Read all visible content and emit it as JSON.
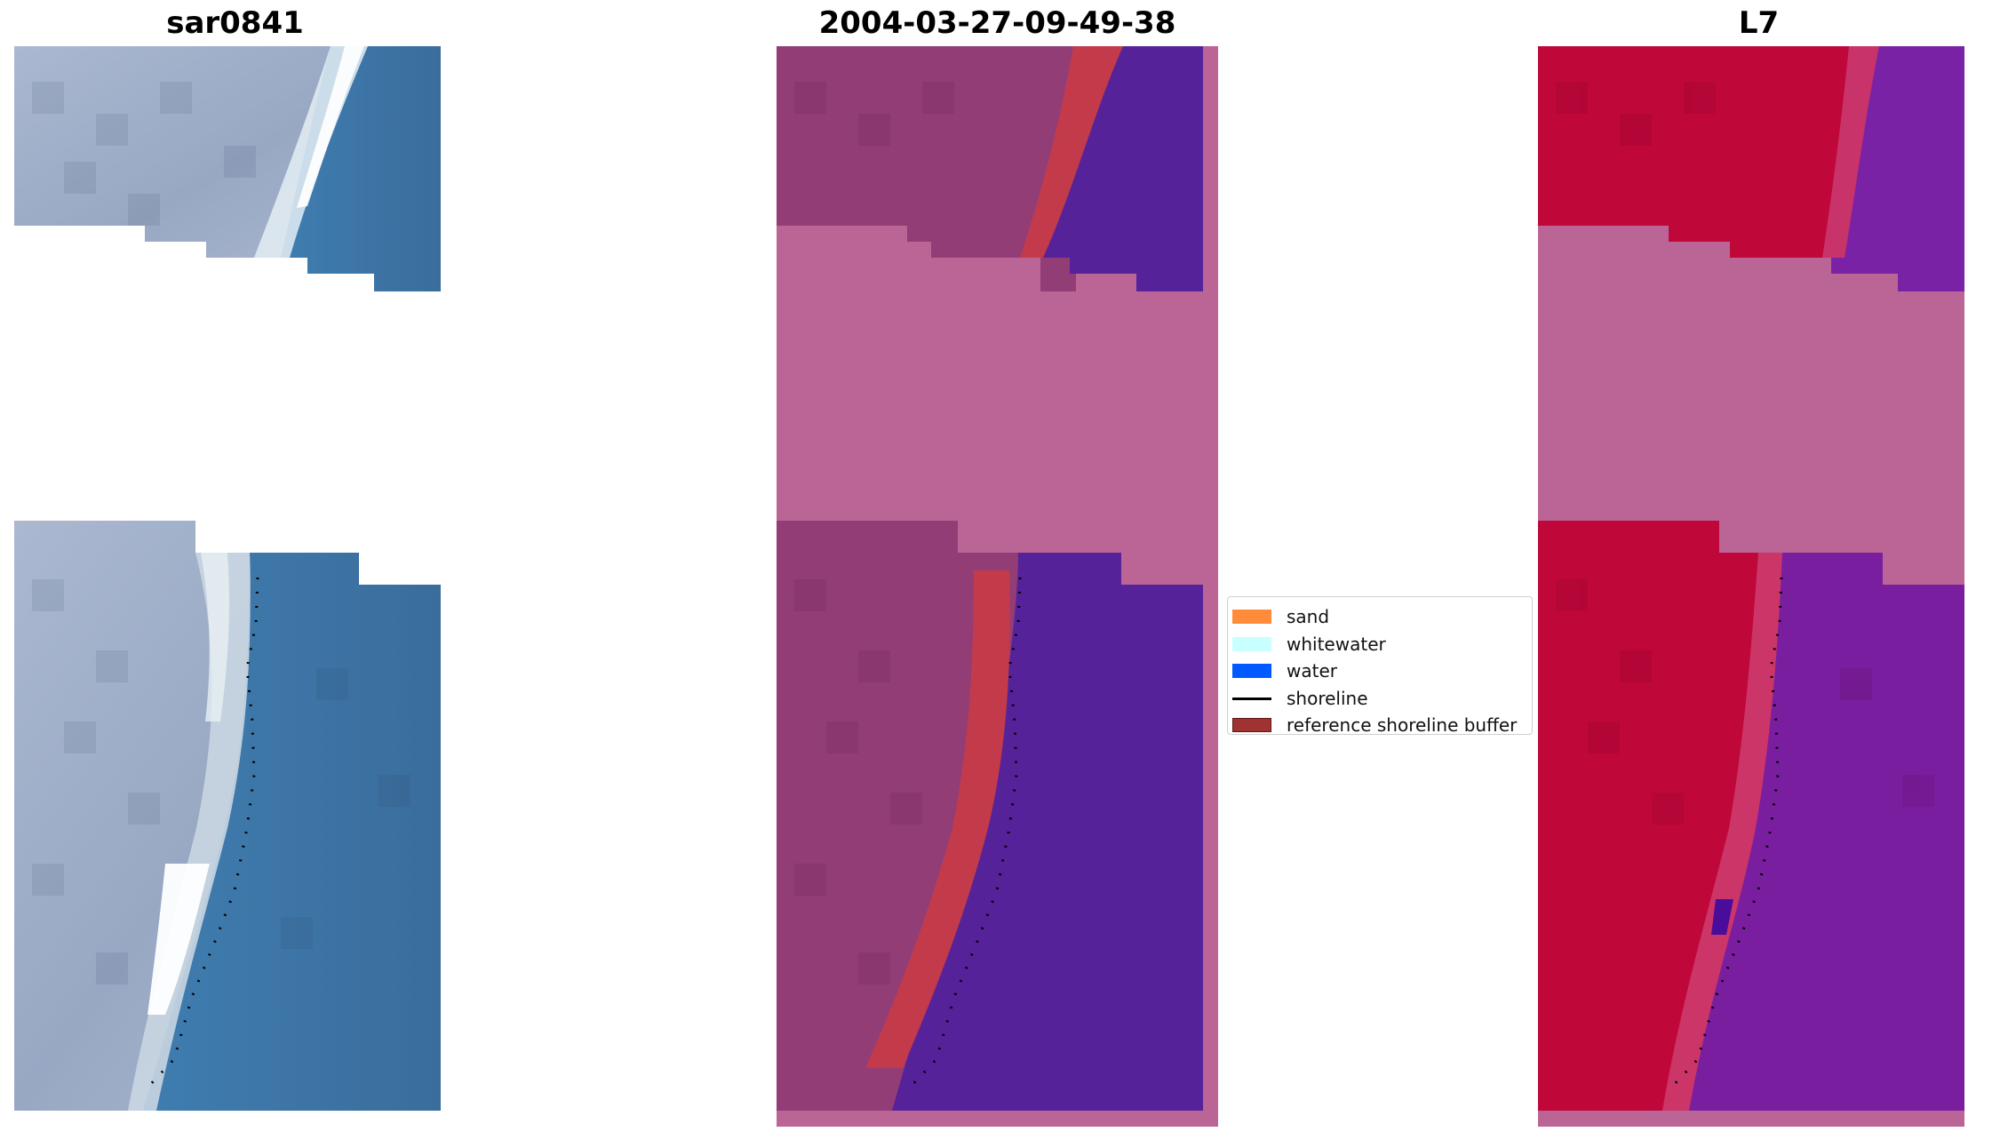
{
  "figure": {
    "panels": [
      {
        "id": "rgb",
        "title": "sar0841",
        "icon": "rgb-satellite-image"
      },
      {
        "id": "classified",
        "title": "2004-03-27-09-49-38",
        "icon": "classified-image"
      },
      {
        "id": "index",
        "title": "L7",
        "icon": "water-index-image"
      }
    ],
    "legend": {
      "placement": "center-right of middle panel",
      "items": [
        {
          "label": "sand",
          "type": "patch",
          "color": "#ff8c3a"
        },
        {
          "label": "whitewater",
          "type": "patch",
          "color": "#c8ffff"
        },
        {
          "label": "water",
          "type": "patch",
          "color": "#005aff"
        },
        {
          "label": "shoreline",
          "type": "line",
          "color": "#000000"
        },
        {
          "label": "reference shoreline buffer",
          "type": "patch",
          "color": "#a03232"
        }
      ]
    }
  }
}
